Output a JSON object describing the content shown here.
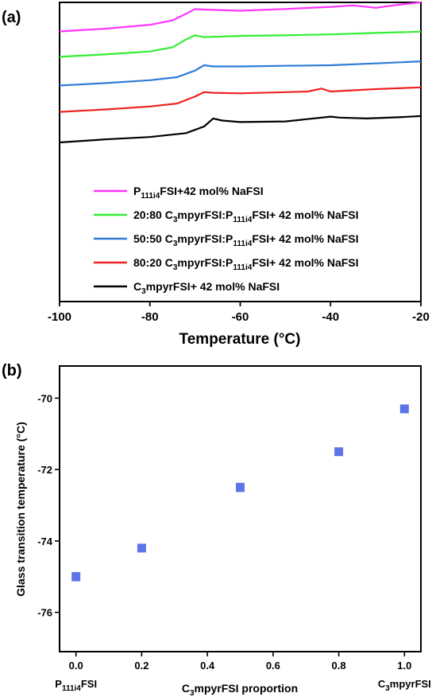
{
  "panel_a_label": "(a)",
  "panel_b_label": "(b)",
  "chart_data": [
    {
      "type": "line",
      "title": "",
      "xlabel": "Temperature (°C)",
      "ylabel": "",
      "xlim": [
        -100,
        -20
      ],
      "xticks": [
        -100,
        -80,
        -60,
        -40,
        -20
      ],
      "xtick_labels": [
        "-100",
        "-80",
        "-60",
        "-40",
        "-20"
      ],
      "legend_position": "lower-left",
      "series": [
        {
          "name_parts": [
            {
              "t": "P"
            },
            {
              "t": "111i4",
              "sub": true
            },
            {
              "t": "FSI+42 mol% NaFSI"
            }
          ],
          "color": "#ff33ff",
          "x": [
            -100,
            -90,
            -80,
            -75,
            -72,
            -70,
            -68,
            -60,
            -50,
            -40,
            -35,
            -30,
            -25,
            -20
          ],
          "y": [
            0.903,
            0.912,
            0.925,
            0.94,
            0.962,
            0.978,
            0.976,
            0.972,
            0.978,
            0.985,
            0.99,
            0.982,
            0.992,
            1.0
          ]
        },
        {
          "name_parts": [
            {
              "t": "20:80 C"
            },
            {
              "t": "3",
              "sub": true
            },
            {
              "t": "mpyrFSI:P"
            },
            {
              "t": "111i4",
              "sub": true
            },
            {
              "t": "FSI+ 42 mol% NaFSI"
            }
          ],
          "color": "#33ee33",
          "x": [
            -100,
            -90,
            -80,
            -75,
            -72,
            -70,
            -68,
            -60,
            -50,
            -40,
            -30,
            -20
          ],
          "y": [
            0.818,
            0.826,
            0.836,
            0.85,
            0.876,
            0.89,
            0.884,
            0.888,
            0.89,
            0.893,
            0.898,
            0.902
          ]
        },
        {
          "name_parts": [
            {
              "t": "50:50 C"
            },
            {
              "t": "3",
              "sub": true
            },
            {
              "t": "mpyrFSI:P"
            },
            {
              "t": "111i4",
              "sub": true
            },
            {
              "t": "FSI+ 42 mol% NaFSI"
            }
          ],
          "color": "#2e7bd6",
          "x": [
            -100,
            -90,
            -80,
            -74,
            -70,
            -68,
            -66,
            -60,
            -50,
            -40,
            -30,
            -20
          ],
          "y": [
            0.722,
            0.73,
            0.74,
            0.75,
            0.772,
            0.79,
            0.786,
            0.786,
            0.788,
            0.79,
            0.796,
            0.803
          ]
        },
        {
          "name_parts": [
            {
              "t": "80:20 C"
            },
            {
              "t": "3",
              "sub": true
            },
            {
              "t": "mpyrFSI:P"
            },
            {
              "t": "111i4",
              "sub": true
            },
            {
              "t": "FSI+ 42 mol% NaFSI"
            }
          ],
          "color": "#ee2222",
          "x": [
            -100,
            -90,
            -80,
            -74,
            -70,
            -68,
            -66,
            -60,
            -50,
            -45,
            -42,
            -40,
            -30,
            -20
          ],
          "y": [
            0.634,
            0.642,
            0.652,
            0.662,
            0.685,
            0.7,
            0.698,
            0.696,
            0.7,
            0.702,
            0.712,
            0.702,
            0.71,
            0.716
          ]
        },
        {
          "name_parts": [
            {
              "t": "C"
            },
            {
              "t": "3",
              "sub": true
            },
            {
              "t": "mpyrFSI+ 42 mol% NaFSI"
            }
          ],
          "color": "#000000",
          "x": [
            -100,
            -90,
            -80,
            -72,
            -68,
            -66,
            -64,
            -60,
            -50,
            -40,
            -38,
            -32,
            -25,
            -20
          ],
          "y": [
            0.532,
            0.542,
            0.55,
            0.563,
            0.585,
            0.612,
            0.605,
            0.6,
            0.602,
            0.618,
            0.615,
            0.612,
            0.616,
            0.62
          ]
        }
      ]
    },
    {
      "type": "scatter",
      "title": "",
      "xlabel_parts": [
        {
          "t": "C"
        },
        {
          "t": "3",
          "sub": true
        },
        {
          "t": "mpyrFSI proportion"
        }
      ],
      "ylabel": "Glass transition temperature (°C)",
      "xlim": [
        -0.05,
        1.05
      ],
      "ylim": [
        -77.1,
        -69.1
      ],
      "xticks": [
        0.0,
        0.2,
        0.4,
        0.6,
        0.8,
        1.0
      ],
      "xtick_labels": [
        "0.0",
        "0.2",
        "0.4",
        "0.6",
        "0.8",
        "1.0"
      ],
      "yticks": [
        -76,
        -74,
        -72,
        -70
      ],
      "ytick_labels": [
        "-76",
        "-74",
        "-72",
        "-70"
      ],
      "marker_color": "#5b74e8",
      "x_end_labels": [
        {
          "at": 0.0,
          "parts": [
            {
              "t": "P"
            },
            {
              "t": "111i4",
              "sub": true
            },
            {
              "t": "FSI"
            }
          ]
        },
        {
          "at": 1.0,
          "parts": [
            {
              "t": "C"
            },
            {
              "t": "3",
              "sub": true
            },
            {
              "t": "mpyrFSI"
            }
          ]
        }
      ],
      "points": [
        {
          "x": 0.0,
          "y": -75.0,
          "err": 0.12
        },
        {
          "x": 0.2,
          "y": -74.2,
          "err": 0.06
        },
        {
          "x": 0.5,
          "y": -72.5,
          "err": 0.12
        },
        {
          "x": 0.8,
          "y": -71.5,
          "err": 0.05
        },
        {
          "x": 1.0,
          "y": -70.3,
          "err": 0.05
        }
      ]
    }
  ]
}
